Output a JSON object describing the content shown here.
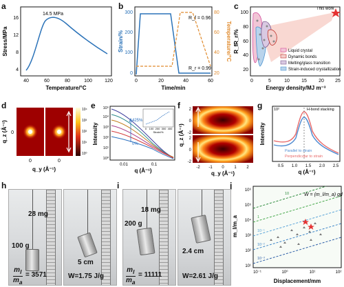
{
  "labels": {
    "a": "a",
    "b": "b",
    "c": "c",
    "d": "d",
    "e": "e",
    "f": "f",
    "g": "g",
    "h": "h",
    "i": "i",
    "j": "j"
  },
  "panel_a": {
    "ylabel": "Stress/MPa",
    "xlabel": "Temperature/°C",
    "annotation": "14.5 MPa",
    "xticks": [
      "40",
      "60",
      "80",
      "100",
      "120"
    ],
    "yticks": [
      "4",
      "8",
      "12",
      "16"
    ]
  },
  "panel_b": {
    "ylabel_left": "Strain/%",
    "ylabel_right": "Temperature/°C",
    "xlabel": "Time/min",
    "rf": "R_f = 0.96",
    "rr": "R_r = 0.99",
    "xticks": [
      "0",
      "20",
      "40",
      "60"
    ],
    "yticks_left": [
      "0",
      "100",
      "200",
      "300"
    ],
    "yticks_right": [
      "20",
      "40",
      "60",
      "80"
    ]
  },
  "panel_c": {
    "ylabel": "R_fR_r/%",
    "xlabel": "Energy density/MJ m⁻³",
    "annotation": "This work",
    "xticks": [
      "0",
      "5",
      "10",
      "15",
      "20",
      "25"
    ],
    "yticks": [
      "20",
      "40",
      "60",
      "80",
      "100"
    ],
    "legend": [
      "Liquid crystal",
      "Dynamic bonds",
      "Melting/glass transition",
      "Strain-induced crystallization"
    ],
    "legend_colors": [
      "#d34c9c",
      "#c0302a",
      "#7c5b8f",
      "#4d95d1"
    ]
  },
  "panel_d": {
    "ylabel": "q_z (Å⁻¹)",
    "xlabel": "q_y (Å⁻¹)",
    "tick": "0",
    "scale": [
      "10⁴",
      "10³",
      "10²",
      "10¹",
      "10⁰"
    ]
  },
  "panel_e": {
    "ylabel": "Intensity",
    "xlabel": "q (Å⁻¹)",
    "xticks": [
      "0.01",
      "0.1"
    ],
    "yticks": [
      "10⁰",
      "10¹",
      "10²",
      "10³",
      "10⁴",
      "10⁵"
    ],
    "annotation": "425%",
    "annotation2": "0%",
    "inset_xlabel": "Strain/%",
    "inset_xticks": [
      "0",
      "100",
      "200",
      "300",
      "400"
    ]
  },
  "panel_f": {
    "ylabel": "q_z (Å⁻¹)",
    "xlabel": "q_y (Å⁻¹)",
    "xticks": [
      "-2",
      "-1",
      "0",
      "1",
      "2"
    ],
    "yticks": [
      "2",
      "0",
      "-2"
    ]
  },
  "panel_g": {
    "ylabel": "Intensity",
    "xlabel": "q (Å⁻¹)",
    "annotation": "H-bond stacking",
    "legend": [
      "Parallel to strain",
      "Perpendicular to strain"
    ],
    "xticks": [
      "0.5",
      "1.0",
      "1.5",
      "2.0",
      "2.5"
    ],
    "ytick": "10²"
  },
  "panel_h": {
    "left_mass_top": "28 mg",
    "left_mass_bottom": "100 g",
    "ratio_prefix": "m",
    "ratio_value": "= 3571",
    "right_text": "5 cm",
    "right_work": "W=1.75 J/g"
  },
  "panel_i": {
    "left_mass_top": "18 mg",
    "left_mass_bottom": "200 g",
    "ratio_value": "= 11111",
    "right_text": "2.4 cm",
    "right_work": "W=2.61 J/g"
  },
  "panel_j": {
    "ylabel": "m_l/m_a",
    "xlabel": "Displacement/mm",
    "xticks": [
      "10⁻¹",
      "10⁰",
      "10¹",
      "10²"
    ],
    "yticks": [
      "10¹",
      "10²",
      "10³",
      "10⁴",
      "10⁵",
      "10⁶"
    ],
    "formula": "W = (m_l/m_a) gd",
    "line_labels": [
      "10",
      "1",
      "10⁻¹",
      "10⁻²",
      "10⁻³"
    ],
    "line_colors": [
      "#2e8b3e",
      "#45a84a",
      "#5aa4d8",
      "#3f86c8",
      "#2e5fa8"
    ]
  }
}
